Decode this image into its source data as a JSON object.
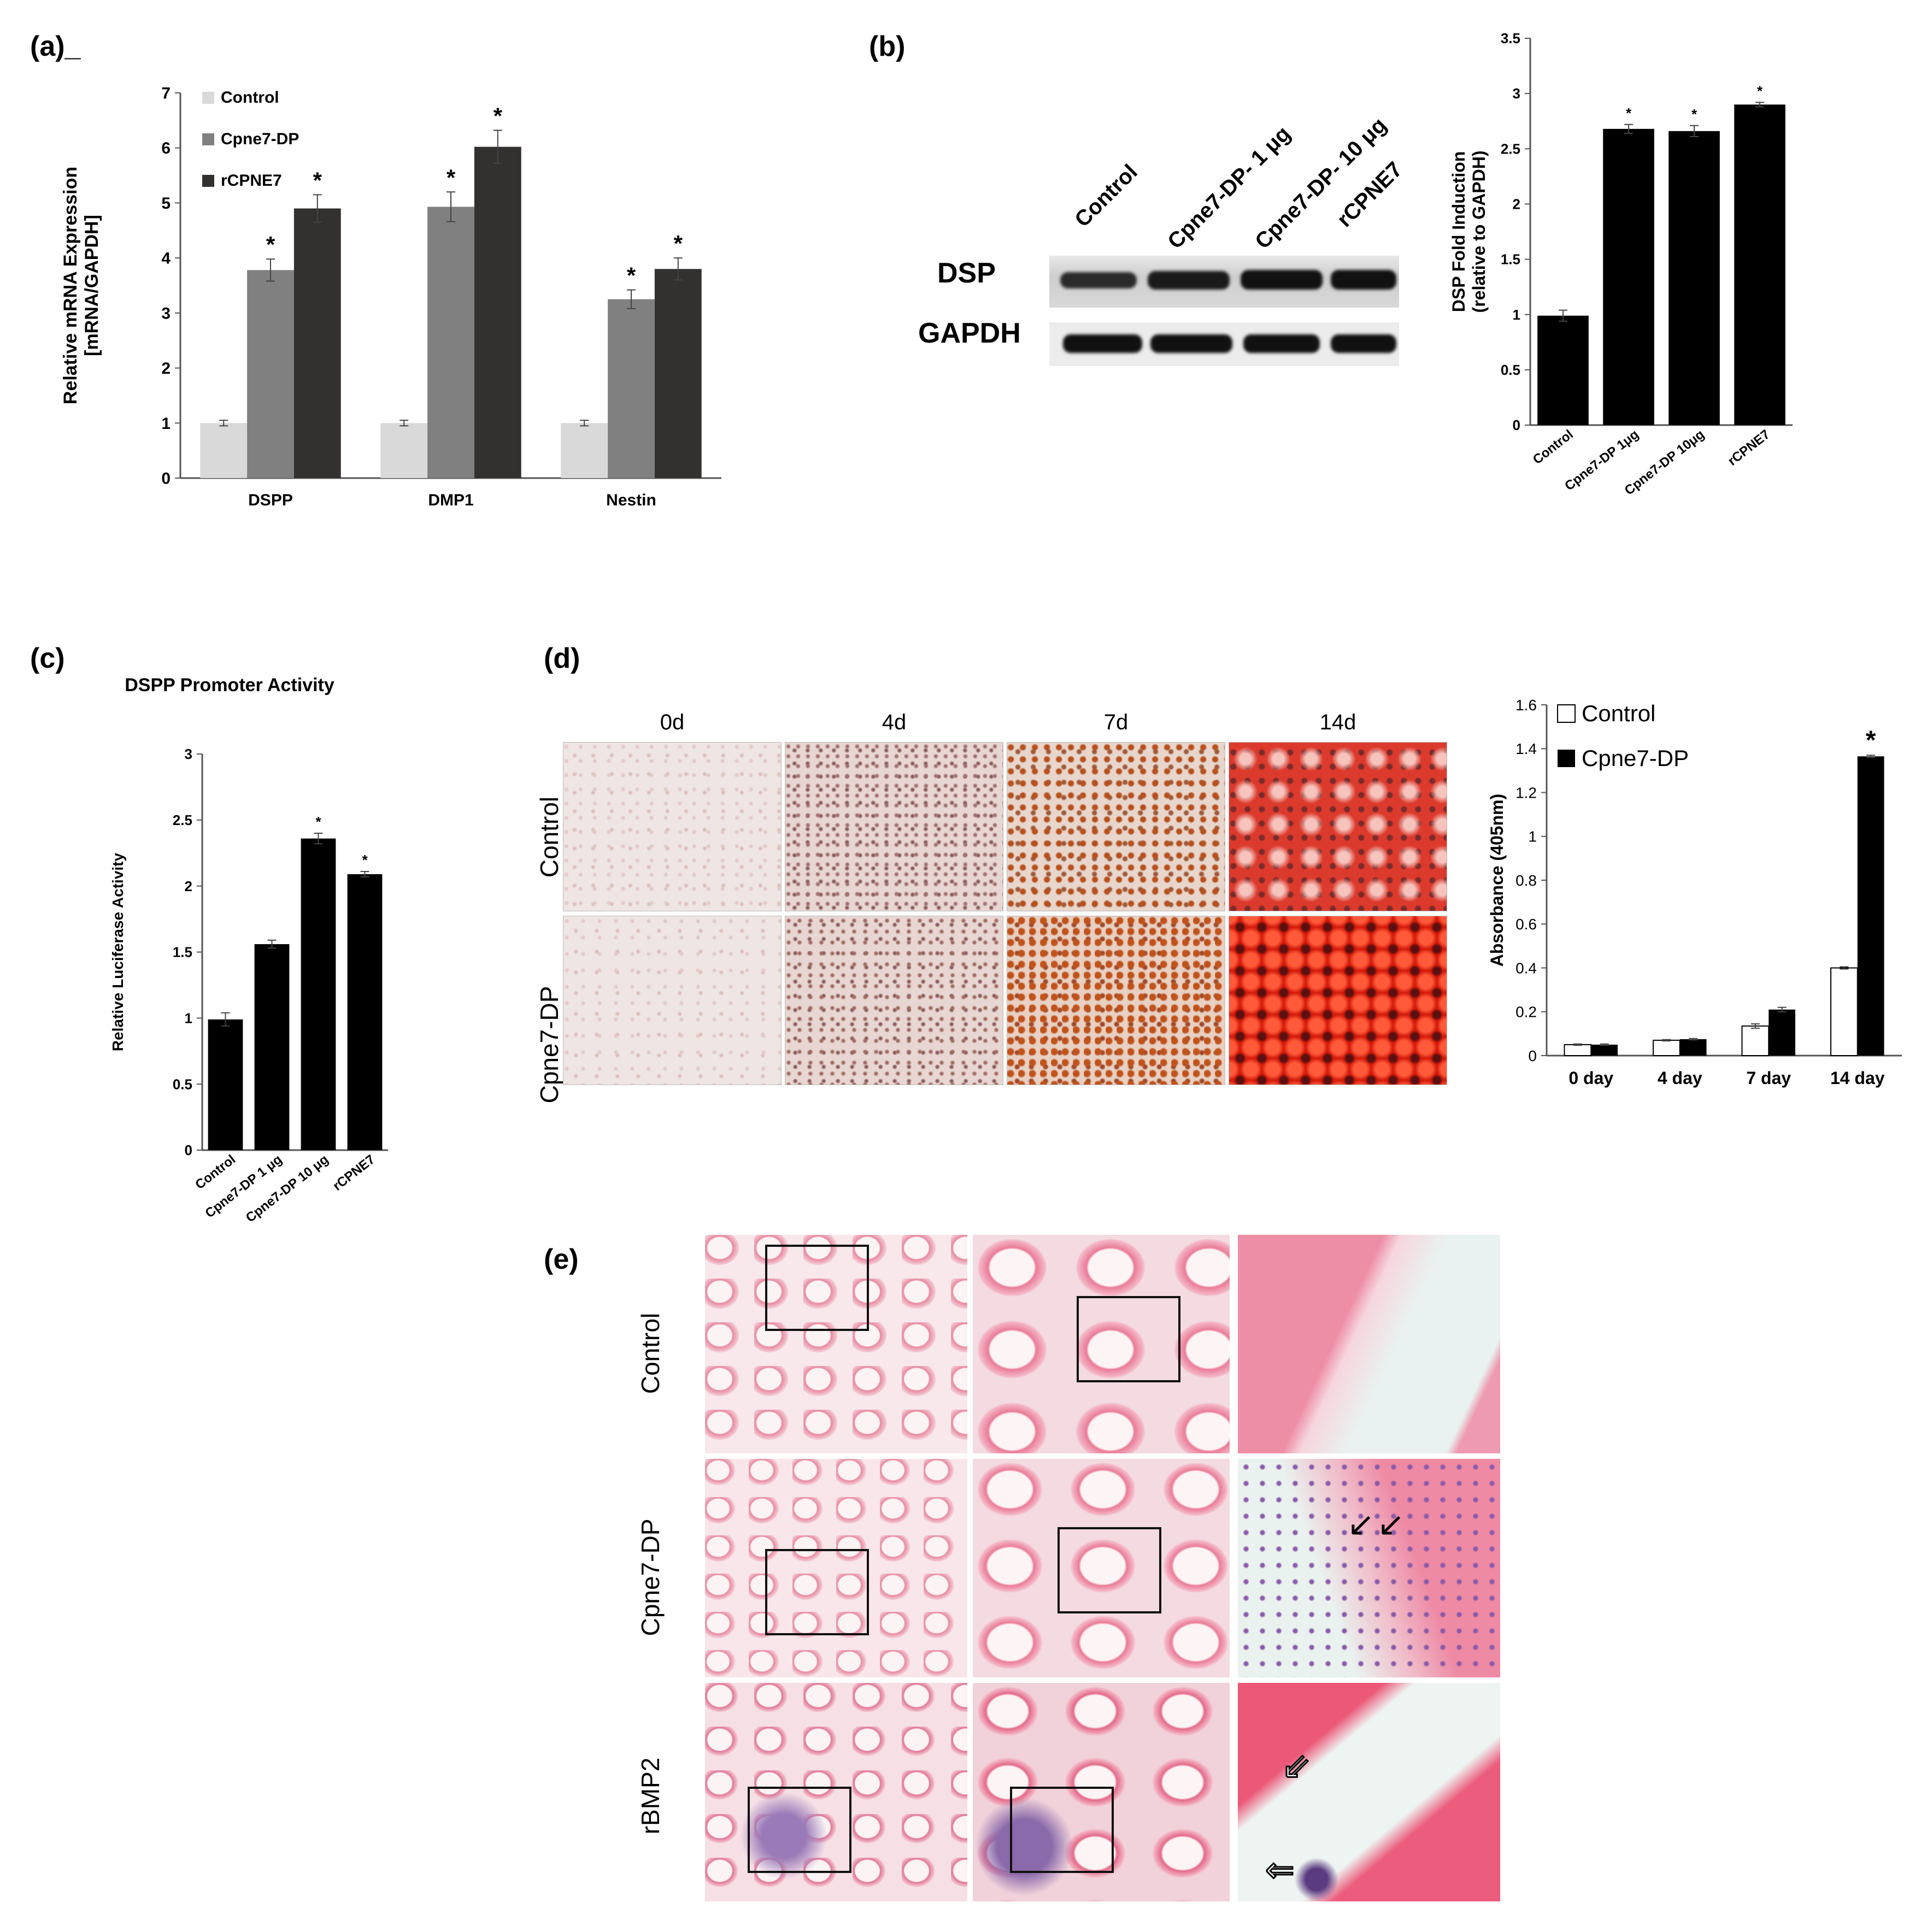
{
  "panels": {
    "a": {
      "label": "(a)_"
    },
    "b": {
      "label": "(b)"
    },
    "c": {
      "label": "(c)"
    },
    "d": {
      "label": "(d)"
    },
    "e": {
      "label": "(e)"
    }
  },
  "chart_data": [
    {
      "id": "a",
      "type": "bar",
      "title": "",
      "xlabel": "",
      "ylabel": "Relative mRNA Expression\n[mRNA/GAPDH]",
      "ylabel_lines": [
        "Relative mRNA Expression",
        "[mRNA/GAPDH]"
      ],
      "ylim": [
        0,
        7
      ],
      "yticks": [
        "0",
        "1",
        "2",
        "3",
        "4",
        "5",
        "6",
        "7"
      ],
      "categories": [
        "DSPP",
        "DMP1",
        "Nestin"
      ],
      "legend": "top-left",
      "series": [
        {
          "name": "Control",
          "color": "#d9d9d9",
          "values": [
            1.0,
            1.0,
            1.0
          ],
          "errors": [
            0.05,
            0.05,
            0.05
          ],
          "sig": [
            "",
            "",
            ""
          ]
        },
        {
          "name": "Cpne7-DP",
          "color": "#808080",
          "values": [
            3.78,
            4.93,
            3.25
          ],
          "errors": [
            0.2,
            0.27,
            0.17
          ],
          "sig": [
            "*",
            "*",
            "*"
          ]
        },
        {
          "name": "rCPNE7",
          "color": "#333030",
          "values": [
            4.9,
            6.02,
            3.8
          ],
          "errors": [
            0.25,
            0.3,
            0.2
          ],
          "sig": [
            "*",
            "*",
            "*"
          ]
        }
      ]
    },
    {
      "id": "b",
      "type": "bar",
      "title": "",
      "xlabel": "",
      "ylabel_lines": [
        "DSP Fold Induction",
        "(relative to GAPDH)"
      ],
      "ylim": [
        0,
        3.5
      ],
      "yticks": [
        "0",
        "0.5",
        "1",
        "1.5",
        "2",
        "2.5",
        "3",
        "3.5"
      ],
      "categories": [
        "Control",
        "Cpne7-DP 1μg",
        "Cpne7-DP 10μg",
        "rCPNE7"
      ],
      "color": "#000000",
      "values": [
        0.99,
        2.68,
        2.66,
        2.9
      ],
      "errors": [
        0.05,
        0.04,
        0.05,
        0.02
      ],
      "sig": [
        "",
        "*",
        "*",
        "*"
      ]
    },
    {
      "id": "c",
      "type": "bar",
      "title": "DSPP Promoter Activity",
      "xlabel": "",
      "ylabel_lines": [
        "Relative Luciferase Activity"
      ],
      "ylim": [
        0,
        3
      ],
      "yticks": [
        "0",
        "0.5",
        "1",
        "1.5",
        "2",
        "2.5",
        "3"
      ],
      "categories": [
        "Control",
        "Cpne7-DP 1 μg",
        "Cpne7-DP 10 μg",
        "rCPNE7"
      ],
      "color": "#000000",
      "values": [
        0.99,
        1.56,
        2.36,
        2.09
      ],
      "errors": [
        0.05,
        0.03,
        0.04,
        0.02
      ],
      "sig": [
        "",
        "",
        "*",
        "*"
      ]
    },
    {
      "id": "d",
      "type": "bar",
      "title": "",
      "xlabel": "",
      "ylabel_lines": [
        "Absorbance (405nm)"
      ],
      "ylim": [
        0,
        1.6
      ],
      "yticks": [
        "0",
        "0.2",
        "0.4",
        "0.6",
        "0.8",
        "1",
        "1.2",
        "1.4",
        "1.6"
      ],
      "categories": [
        "0 day",
        "4 day",
        "7 day",
        "14 day"
      ],
      "legend": "top-left",
      "series": [
        {
          "name": "Control",
          "color": "#ffffff",
          "values": [
            0.05,
            0.07,
            0.135,
            0.4
          ],
          "errors": [
            0.003,
            0.003,
            0.01,
            0.005
          ],
          "sig": [
            "",
            "",
            "",
            ""
          ]
        },
        {
          "name": "Cpne7-DP",
          "color": "#000000",
          "values": [
            0.05,
            0.075,
            0.21,
            1.365
          ],
          "errors": [
            0.003,
            0.003,
            0.01,
            0.005
          ],
          "sig": [
            "",
            "",
            "",
            "*"
          ]
        }
      ]
    }
  ],
  "blot": {
    "columns": [
      "Control",
      "Cpne7-DP- 1 μg",
      "Cpne7-DP- 10 μg",
      "rCPNE7"
    ],
    "rows": [
      "DSP",
      "GAPDH"
    ]
  },
  "staining": {
    "columns": [
      "0d",
      "4d",
      "7d",
      "14d"
    ],
    "rows": [
      "Control",
      "Cpne7-DP"
    ]
  },
  "histology": {
    "rows": [
      "Control",
      "Cpne7-DP",
      "rBMP2"
    ]
  }
}
